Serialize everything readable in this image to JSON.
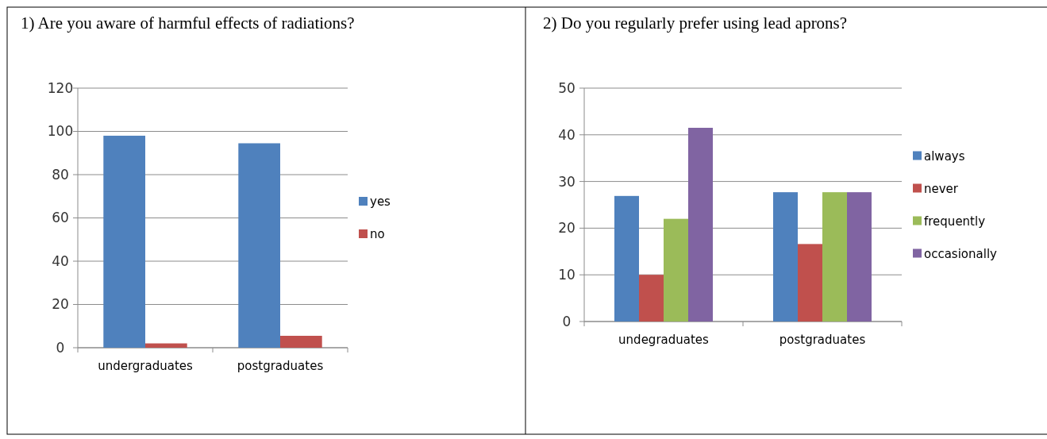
{
  "chart_data": [
    {
      "type": "bar",
      "title": "1)   Are you aware of harmful effects of radiations?",
      "categories": [
        "undergraduates",
        "postgraduates"
      ],
      "series": [
        {
          "name": "yes",
          "color": "#4f81bd",
          "values": [
            98,
            94.5
          ]
        },
        {
          "name": "no",
          "color": "#c0504d",
          "values": [
            2,
            5.5
          ]
        }
      ],
      "ylim": [
        0,
        120
      ],
      "yticks": [
        0,
        20,
        40,
        60,
        80,
        100,
        120
      ],
      "grid": "y",
      "legend": "right"
    },
    {
      "type": "bar",
      "title": "2)   Do you regularly prefer using lead aprons?",
      "categories": [
        "undegraduates",
        "postgraduates"
      ],
      "series": [
        {
          "name": "always",
          "color": "#4f81bd",
          "values": [
            26.9,
            27.7
          ]
        },
        {
          "name": "never",
          "color": "#c0504d",
          "values": [
            10,
            16.6
          ]
        },
        {
          "name": "frequently",
          "color": "#9bbb59",
          "values": [
            22,
            27.7
          ]
        },
        {
          "name": "occasionally",
          "color": "#8064a2",
          "values": [
            41.5,
            27.7
          ]
        }
      ],
      "ylim": [
        0,
        50
      ],
      "yticks": [
        0,
        10,
        20,
        30,
        40,
        50
      ],
      "grid": "y",
      "legend": "right"
    }
  ]
}
